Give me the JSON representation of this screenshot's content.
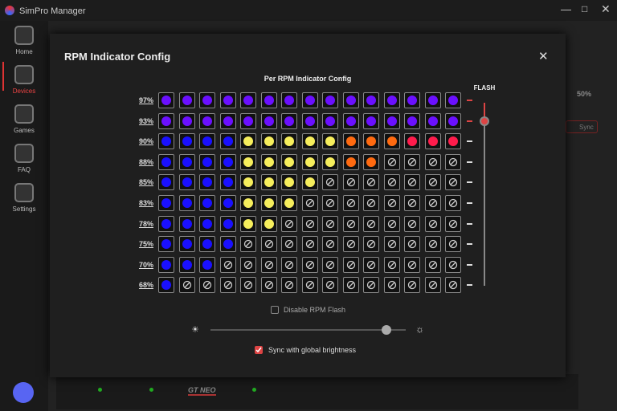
{
  "app": {
    "title": "SimPro Manager",
    "nav": [
      {
        "label": "Home",
        "active": false
      },
      {
        "label": "Devices",
        "active": true
      },
      {
        "label": "Games",
        "active": false
      },
      {
        "label": "FAQ",
        "active": false
      },
      {
        "label": "Settings",
        "active": false
      }
    ]
  },
  "background": {
    "percent": "50%",
    "sync_button": "Sync",
    "device_label": "GT NEO"
  },
  "dialog": {
    "title": "RPM Indicator Config",
    "section_title": "Per RPM Indicator Config",
    "flash_label": "FLASH",
    "rows": [
      {
        "label": "97%",
        "flash": true,
        "leds": [
          "#6b10ff",
          "#6b10ff",
          "#6b10ff",
          "#6b10ff",
          "#6b10ff",
          "#6b10ff",
          "#6b10ff",
          "#6b10ff",
          "#6b10ff",
          "#6b10ff",
          "#6b10ff",
          "#6b10ff",
          "#6b10ff",
          "#6b10ff",
          "#6b10ff"
        ]
      },
      {
        "label": "93%",
        "flash": true,
        "leds": [
          "#6b10ff",
          "#6b10ff",
          "#6b10ff",
          "#6b10ff",
          "#6b10ff",
          "#6b10ff",
          "#6b10ff",
          "#6b10ff",
          "#6b10ff",
          "#6b10ff",
          "#6b10ff",
          "#6b10ff",
          "#6b10ff",
          "#6b10ff",
          "#6b10ff"
        ]
      },
      {
        "label": "90%",
        "flash": false,
        "leds": [
          "#1a10ff",
          "#1a10ff",
          "#1a10ff",
          "#1a10ff",
          "#f6ee5c",
          "#f6ee5c",
          "#f6ee5c",
          "#f6ee5c",
          "#f6ee5c",
          "#ff6a10",
          "#ff6a10",
          "#ff6a10",
          "#ff1c4c",
          "#ff1c4c",
          "#ff1c4c"
        ]
      },
      {
        "label": "88%",
        "flash": false,
        "leds": [
          "#1a10ff",
          "#1a10ff",
          "#1a10ff",
          "#1a10ff",
          "#f6ee5c",
          "#f6ee5c",
          "#f6ee5c",
          "#f6ee5c",
          "#f6ee5c",
          "#ff6a10",
          "#ff6a10",
          null,
          null,
          null,
          null
        ]
      },
      {
        "label": "85%",
        "flash": false,
        "leds": [
          "#1a10ff",
          "#1a10ff",
          "#1a10ff",
          "#1a10ff",
          "#f6ee5c",
          "#f6ee5c",
          "#f6ee5c",
          "#f6ee5c",
          null,
          null,
          null,
          null,
          null,
          null,
          null
        ]
      },
      {
        "label": "83%",
        "flash": false,
        "leds": [
          "#1a10ff",
          "#1a10ff",
          "#1a10ff",
          "#1a10ff",
          "#f6ee5c",
          "#f6ee5c",
          "#f6ee5c",
          null,
          null,
          null,
          null,
          null,
          null,
          null,
          null
        ]
      },
      {
        "label": "78%",
        "flash": false,
        "leds": [
          "#1a10ff",
          "#1a10ff",
          "#1a10ff",
          "#1a10ff",
          "#f6ee5c",
          "#f6ee5c",
          null,
          null,
          null,
          null,
          null,
          null,
          null,
          null,
          null
        ]
      },
      {
        "label": "75%",
        "flash": false,
        "leds": [
          "#1a10ff",
          "#1a10ff",
          "#1a10ff",
          "#1a10ff",
          null,
          null,
          null,
          null,
          null,
          null,
          null,
          null,
          null,
          null,
          null
        ]
      },
      {
        "label": "70%",
        "flash": false,
        "leds": [
          "#1a10ff",
          "#1a10ff",
          "#1a10ff",
          null,
          null,
          null,
          null,
          null,
          null,
          null,
          null,
          null,
          null,
          null,
          null
        ]
      },
      {
        "label": "68%",
        "flash": false,
        "leds": [
          "#1a10ff",
          null,
          null,
          null,
          null,
          null,
          null,
          null,
          null,
          null,
          null,
          null,
          null,
          null,
          null
        ]
      }
    ],
    "disable_flash": {
      "label": "Disable RPM Flash",
      "checked": false
    },
    "brightness": 90,
    "brightness_range": [
      0,
      100
    ],
    "sync": {
      "label": "Sync with global brightness",
      "checked": true
    }
  }
}
